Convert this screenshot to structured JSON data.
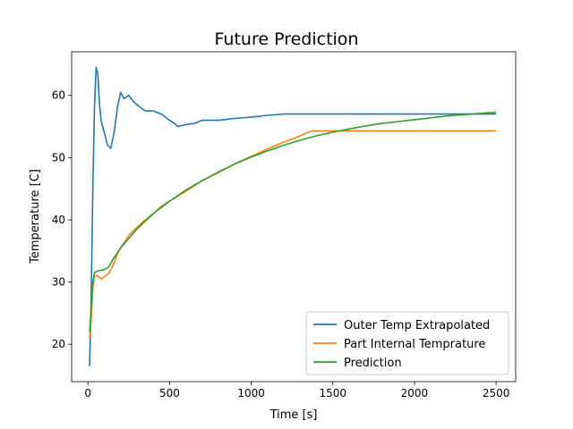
{
  "chart_data": {
    "type": "line",
    "title": "Future Prediction",
    "xlabel": "Time [s]",
    "ylabel": "Temperature [C]",
    "xlim": [
      -100,
      2620
    ],
    "ylim": [
      14,
      67
    ],
    "xticks": [
      0,
      500,
      1000,
      1500,
      2000,
      2500
    ],
    "yticks": [
      20,
      30,
      40,
      50,
      60
    ],
    "grid": false,
    "legend_position": "lower-right",
    "series": [
      {
        "name": "Outer Temp Extrapolated",
        "color": "#1f77b4",
        "points": [
          [
            10,
            16.5
          ],
          [
            20,
            28
          ],
          [
            30,
            45
          ],
          [
            40,
            58
          ],
          [
            50,
            64.5
          ],
          [
            60,
            63.5
          ],
          [
            70,
            59
          ],
          [
            80,
            56
          ],
          [
            100,
            54
          ],
          [
            120,
            52
          ],
          [
            140,
            51.5
          ],
          [
            160,
            54
          ],
          [
            180,
            58
          ],
          [
            200,
            60.5
          ],
          [
            220,
            59.5
          ],
          [
            250,
            60
          ],
          [
            280,
            59
          ],
          [
            300,
            58.5
          ],
          [
            350,
            57.5
          ],
          [
            400,
            57.5
          ],
          [
            450,
            57
          ],
          [
            500,
            56
          ],
          [
            530,
            55.5
          ],
          [
            550,
            55
          ],
          [
            600,
            55.3
          ],
          [
            650,
            55.5
          ],
          [
            700,
            56
          ],
          [
            800,
            56
          ],
          [
            900,
            56.3
          ],
          [
            1000,
            56.5
          ],
          [
            1100,
            56.8
          ],
          [
            1200,
            57
          ],
          [
            1300,
            57
          ],
          [
            1370,
            57
          ],
          [
            1500,
            57
          ],
          [
            2000,
            57
          ],
          [
            2500,
            57
          ]
        ]
      },
      {
        "name": "Part Internal Temprature",
        "color": "#ff7f0e",
        "points": [
          [
            10,
            21
          ],
          [
            20,
            24
          ],
          [
            30,
            29
          ],
          [
            40,
            31
          ],
          [
            60,
            31
          ],
          [
            80,
            30.5
          ],
          [
            100,
            30.8
          ],
          [
            130,
            31.5
          ],
          [
            150,
            32.5
          ],
          [
            180,
            34.5
          ],
          [
            200,
            35.5
          ],
          [
            250,
            37.5
          ],
          [
            300,
            38.8
          ],
          [
            350,
            40
          ],
          [
            400,
            41
          ],
          [
            450,
            42.2
          ],
          [
            500,
            43
          ],
          [
            600,
            44.6
          ],
          [
            700,
            46.3
          ],
          [
            800,
            47.6
          ],
          [
            900,
            49
          ],
          [
            1000,
            50.2
          ],
          [
            1100,
            51.4
          ],
          [
            1200,
            52.5
          ],
          [
            1300,
            53.5
          ],
          [
            1360,
            54.2
          ],
          [
            1370,
            54.3
          ],
          [
            1500,
            54.3
          ],
          [
            2000,
            54.3
          ],
          [
            2500,
            54.3
          ]
        ]
      },
      {
        "name": "Prediction",
        "color": "#2ca02c",
        "points": [
          [
            10,
            22
          ],
          [
            20,
            26
          ],
          [
            30,
            30
          ],
          [
            40,
            31.5
          ],
          [
            60,
            31.8
          ],
          [
            100,
            32
          ],
          [
            130,
            32.5
          ],
          [
            150,
            33.5
          ],
          [
            200,
            35.5
          ],
          [
            250,
            37
          ],
          [
            300,
            38.5
          ],
          [
            400,
            41
          ],
          [
            500,
            43
          ],
          [
            600,
            44.8
          ],
          [
            700,
            46.3
          ],
          [
            800,
            47.7
          ],
          [
            900,
            49
          ],
          [
            1000,
            50.1
          ],
          [
            1100,
            51.1
          ],
          [
            1200,
            52
          ],
          [
            1300,
            52.8
          ],
          [
            1400,
            53.5
          ],
          [
            1500,
            54.1
          ],
          [
            1600,
            54.6
          ],
          [
            1700,
            55.1
          ],
          [
            1800,
            55.5
          ],
          [
            1900,
            55.8
          ],
          [
            2000,
            56.1
          ],
          [
            2100,
            56.4
          ],
          [
            2200,
            56.7
          ],
          [
            2300,
            56.9
          ],
          [
            2400,
            57.1
          ],
          [
            2500,
            57.3
          ]
        ]
      }
    ]
  }
}
